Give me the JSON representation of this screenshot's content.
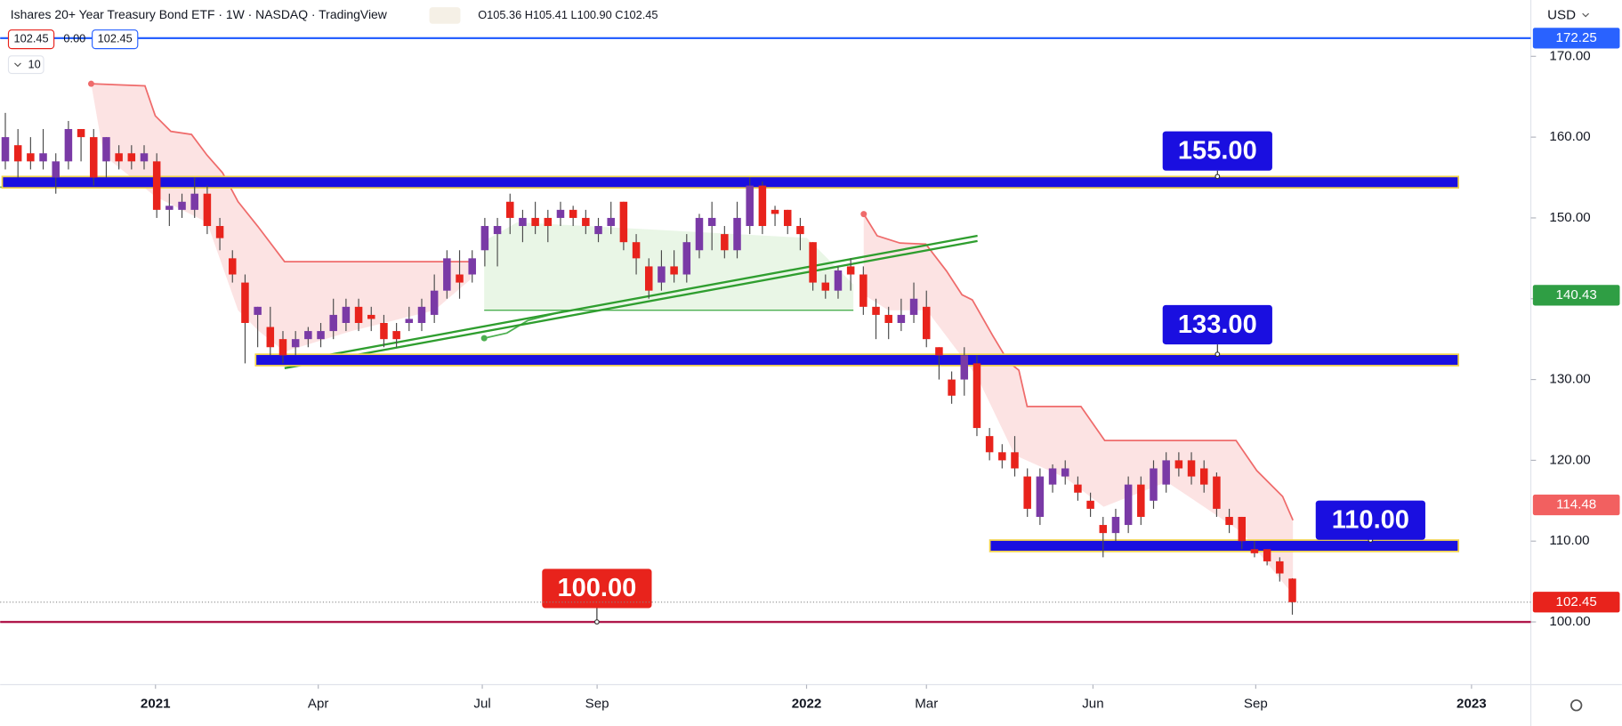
{
  "header": {
    "title": "Ishares 20+ Year Treasury Bond ETF · 1W · NASDAQ · TradingView",
    "ohlc": "O105.36 H105.41 L100.90 C102.45",
    "price_boxes": [
      "102.45",
      "0.00",
      "102.45"
    ],
    "interval": "10",
    "currency": "USD"
  },
  "chart_data": {
    "type": "candlestick",
    "up_color": "#7a3aa6",
    "down_color": "#e8231c",
    "wick_color": "#4a4a4a",
    "open": [
      157,
      159,
      158,
      157,
      155,
      157,
      161,
      160,
      157,
      158,
      158,
      157,
      157,
      151,
      151,
      151,
      153,
      149,
      145,
      142,
      138,
      136.5,
      135,
      134,
      135,
      135,
      136,
      137,
      139,
      138,
      137,
      136,
      137,
      137,
      138,
      141,
      143,
      143,
      146,
      148,
      152,
      149,
      150,
      150,
      150,
      151,
      150,
      148,
      149,
      152,
      147,
      144,
      142,
      144,
      143,
      146,
      149,
      148,
      146,
      149,
      154,
      151,
      151,
      149,
      147,
      142,
      141,
      144,
      143,
      139,
      138,
      137,
      138,
      139,
      134,
      130,
      130,
      132,
      123,
      121,
      121,
      118,
      113,
      117,
      118,
      117,
      115,
      112,
      111,
      112,
      117,
      115,
      117,
      120,
      120,
      119,
      118,
      113,
      113,
      109,
      109,
      107.5,
      105.36
    ],
    "high": [
      163,
      161,
      160,
      161,
      158,
      162,
      161,
      161,
      160,
      159,
      159,
      159,
      158,
      153,
      153,
      155,
      154,
      150,
      146,
      143,
      139,
      139,
      136,
      136,
      136.5,
      137,
      140,
      140,
      140,
      139,
      138,
      137,
      139,
      140,
      143,
      146,
      146,
      146,
      150,
      150,
      153,
      151,
      152,
      151,
      152,
      151.5,
      151,
      150,
      152,
      152,
      148,
      145,
      146,
      146,
      148,
      150.5,
      152,
      149,
      152,
      155,
      154.5,
      151.5,
      151,
      150,
      147,
      143,
      144,
      145,
      144,
      140,
      139,
      140,
      142,
      141,
      134,
      131,
      134,
      133,
      124,
      122,
      123,
      119,
      119,
      119.5,
      120,
      118,
      116,
      113,
      114,
      118,
      118,
      120,
      121,
      121,
      121,
      120,
      118.5,
      114,
      113,
      110,
      109,
      108,
      105.41
    ],
    "low": [
      156,
      155,
      156,
      156,
      153,
      156,
      157,
      154,
      155,
      156,
      156,
      156,
      150,
      149,
      150,
      150,
      148,
      146,
      142,
      132,
      134,
      133,
      132,
      133,
      134,
      134,
      135,
      136,
      136,
      136,
      134,
      134,
      136,
      136,
      137,
      140,
      140,
      142,
      144,
      144,
      148,
      147,
      148,
      147,
      149,
      149,
      148,
      147,
      148,
      146,
      143,
      140,
      141,
      142,
      142,
      145,
      146,
      145,
      145,
      148,
      148,
      149,
      148,
      146,
      141,
      140,
      140,
      141,
      138,
      135,
      135,
      136,
      137,
      134,
      130,
      127,
      128,
      123,
      120,
      119,
      118,
      113,
      112,
      116,
      117,
      115,
      113,
      108,
      110,
      111,
      112,
      114,
      116,
      118,
      117,
      116,
      113,
      111,
      109,
      108,
      107,
      105,
      100.9
    ],
    "close": [
      160,
      157,
      157,
      158,
      157,
      161,
      160,
      155,
      160,
      157,
      157,
      158,
      151,
      151.5,
      152,
      153,
      149,
      147.5,
      143,
      137,
      139,
      134,
      133,
      135,
      136,
      136,
      138,
      139,
      137,
      137.5,
      135,
      135,
      137.5,
      139,
      141,
      145,
      142,
      145,
      149,
      149,
      150,
      150,
      149,
      149,
      151,
      150,
      149,
      149,
      150,
      147,
      145,
      141,
      144,
      143,
      147,
      150,
      150,
      146,
      150,
      154,
      149,
      150.5,
      149,
      148,
      142,
      141,
      143.5,
      143,
      139,
      138,
      137,
      138,
      140,
      135,
      133,
      128,
      133,
      124,
      121,
      120,
      119,
      114,
      118,
      119,
      119,
      116,
      114,
      111,
      113,
      117,
      113,
      119,
      120,
      119,
      118,
      117,
      114,
      112,
      110,
      108.5,
      107.5,
      106,
      102.45
    ],
    "xlim": [
      -0.41,
      120.9
    ],
    "xticks": [
      {
        "value": 11.9,
        "label": "2021"
      },
      {
        "value": 24.8,
        "label": "Apr"
      },
      {
        "value": 37.8,
        "label": "Jul"
      },
      {
        "value": 46.9,
        "label": "Sep"
      },
      {
        "value": 63.5,
        "label": "2022"
      },
      {
        "value": 73,
        "label": "Mar"
      },
      {
        "value": 86.2,
        "label": "Jun"
      },
      {
        "value": 99.1,
        "label": "Sep"
      },
      {
        "value": 116.2,
        "label": "2023"
      }
    ],
    "ylim": [
      92.24,
      176.97
    ],
    "yticks": [
      {
        "value": 100,
        "label": "100.00"
      },
      {
        "value": 110,
        "label": "110.00"
      },
      {
        "value": 120,
        "label": "120.00"
      },
      {
        "value": 130,
        "label": "130.00"
      },
      {
        "value": 140,
        "label": "140.00"
      },
      {
        "value": 150,
        "label": "150.00"
      },
      {
        "value": 160,
        "label": "160.00"
      },
      {
        "value": 170,
        "label": "170.00"
      }
    ],
    "levels": [
      {
        "value": 155,
        "label": "155.00",
        "color": "#1a0fe0"
      },
      {
        "value": 133,
        "label": "133.00",
        "color": "#1a0fe0"
      },
      {
        "value": 110,
        "label": "110.00",
        "color": "#1a0fe0"
      },
      {
        "value": 100,
        "label": "100.00",
        "color": "#e8231c"
      }
    ],
    "price_labels": [
      {
        "value": 172.25,
        "label": "172.25",
        "color": "#2962ff"
      },
      {
        "value": 140.43,
        "label": "140.43",
        "color": "#2f9e44"
      },
      {
        "value": 114.48,
        "label": "114.48",
        "color": "#f26060"
      },
      {
        "value": 102.45,
        "label": "102.45",
        "color": "#e8231c"
      }
    ]
  }
}
